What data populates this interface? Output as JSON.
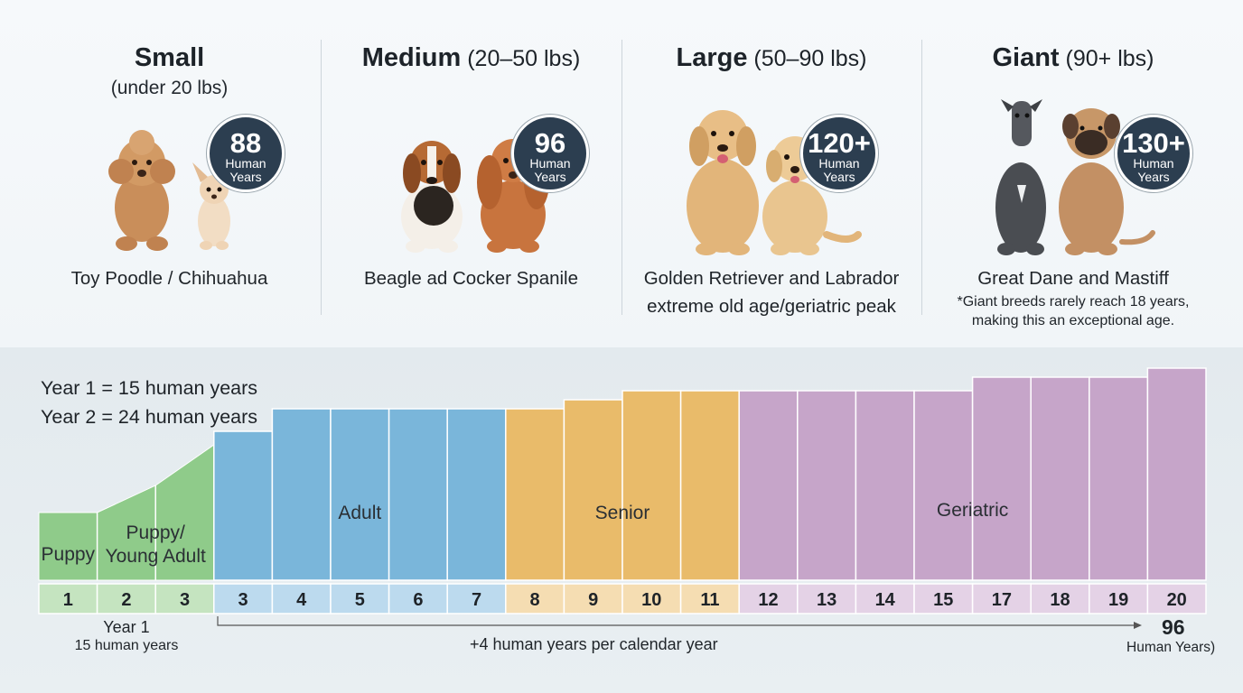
{
  "panels": [
    {
      "name_bold": "Small",
      "name_rest": "",
      "subtitle": "(under 20 lbs)",
      "badge_number": "88",
      "badge_unit": "Human Years",
      "breeds": "Toy Poodle / Chihuahua",
      "breeds_line2": "",
      "note_lines": []
    },
    {
      "name_bold": "Medium",
      "name_rest": " (20–50 lbs)",
      "subtitle": "",
      "badge_number": "96",
      "badge_unit": "Human Years",
      "breeds": "Beagle ad Cocker Spanile",
      "breeds_line2": "",
      "note_lines": []
    },
    {
      "name_bold": "Large",
      "name_rest": " (50–90 lbs)",
      "subtitle": "",
      "badge_number": "120+",
      "badge_unit": "Human Years",
      "breeds": "Golden Retriever and Labrador",
      "breeds_line2": "extreme old age/geriatric peak",
      "note_lines": []
    },
    {
      "name_bold": "Giant",
      "name_rest": " (90+ lbs)",
      "subtitle": "",
      "badge_number": "130+",
      "badge_unit": "Human Years",
      "breeds": "Great Dane and Mastiff",
      "breeds_line2": "",
      "note_lines": [
        "*Giant breeds rarely reach 18 years,",
        "making this an exceptional age."
      ]
    }
  ],
  "rules": [
    "Year 1 = 15 human years",
    "Year 2 = 24 human years"
  ],
  "colors": {
    "puppy": "#8fcb8a",
    "puppy_strip": "#c5e4c0",
    "adult": "#7ab6da",
    "adult_strip": "#bcdaee",
    "senior": "#e9bb6a",
    "senior_strip": "#f5ddb2",
    "geriatric": "#c6a5c9",
    "geriatric_strip": "#e4d2e6",
    "badge": "#2c3e50"
  },
  "chart_data": {
    "type": "bar",
    "categories": [
      "1",
      "2",
      "3",
      "3",
      "4",
      "5",
      "6",
      "7",
      "8",
      "9",
      "10",
      "11",
      "12",
      "13",
      "14",
      "15",
      "17",
      "18",
      "19",
      "20"
    ],
    "values": [
      15,
      21,
      30,
      33,
      38,
      38,
      38,
      38,
      38,
      40,
      42,
      42,
      42,
      42,
      42,
      42,
      45,
      45,
      45,
      47
    ],
    "stages": [
      "Puppy",
      "Puppy/Young Adult",
      "Puppy/Young Adult",
      "Adult",
      "Adult",
      "Adult",
      "Adult",
      "Adult",
      "Senior",
      "Senior",
      "Senior",
      "Senior",
      "Geriatric",
      "Geriatric",
      "Geriatric",
      "Geriatric",
      "Geriatric",
      "Geriatric",
      "Geriatric",
      "Geriatric"
    ],
    "stage_labels": [
      {
        "text": "Puppy",
        "stage": "puppy"
      },
      {
        "text": "Puppy/",
        "stage": "puppy"
      },
      {
        "text": "Young Adult",
        "stage": "puppy"
      },
      {
        "text": "Adult",
        "stage": "adult"
      },
      {
        "text": "Senior",
        "stage": "senior"
      },
      {
        "text": "Geriatric",
        "stage": "geriatric"
      }
    ],
    "ylim": [
      0,
      50
    ],
    "grid": false,
    "legend": "none"
  },
  "footer": {
    "left_line1": "Year 1",
    "left_line2": "15 human years",
    "middle": "+4 human years per calendar year",
    "right_number": "96",
    "right_text": "Human Years)"
  }
}
